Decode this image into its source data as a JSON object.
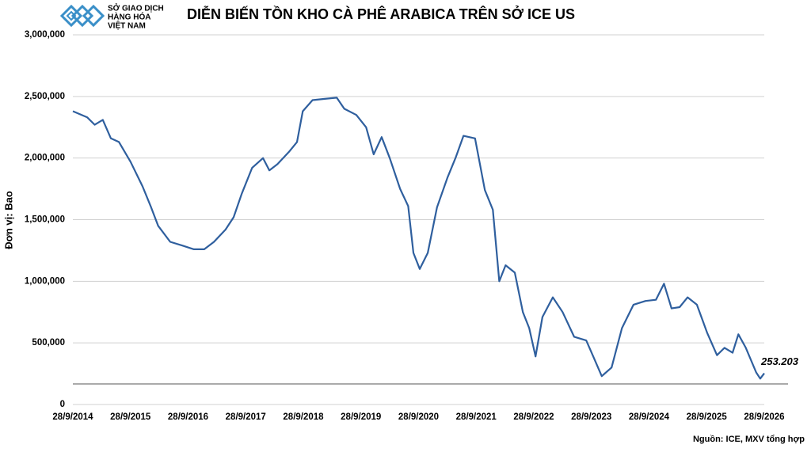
{
  "logo": [
    "SỞ GIAO DỊCH",
    "HÀNG HÓA",
    "VIỆT NAM"
  ],
  "chart_data": {
    "type": "line",
    "title": "DIỄN BIẾN TỒN KHO CÀ PHÊ ARABICA TRÊN SỞ ICE US",
    "y_label": "Đơn vị: Bao",
    "source": "Nguồn: ICE, MXV tổng hợp",
    "x": [
      2014.74,
      2014.99,
      2015.12,
      2015.26,
      2015.4,
      2015.54,
      2015.74,
      2015.95,
      2016.09,
      2016.22,
      2016.43,
      2016.64,
      2016.84,
      2017.02,
      2017.19,
      2017.39,
      2017.53,
      2017.67,
      2017.85,
      2018.04,
      2018.15,
      2018.29,
      2018.49,
      2018.63,
      2018.73,
      2018.9,
      2019.11,
      2019.32,
      2019.45,
      2019.66,
      2019.83,
      2019.96,
      2020.1,
      2020.24,
      2020.42,
      2020.56,
      2020.65,
      2020.76,
      2020.9,
      2021.06,
      2021.24,
      2021.38,
      2021.52,
      2021.72,
      2021.89,
      2022.03,
      2022.14,
      2022.25,
      2022.41,
      2022.55,
      2022.66,
      2022.77,
      2022.89,
      2023.07,
      2023.24,
      2023.44,
      2023.65,
      2023.78,
      2023.92,
      2024.09,
      2024.27,
      2024.47,
      2024.68,
      2024.86,
      2025.0,
      2025.13,
      2025.27,
      2025.41,
      2025.57,
      2025.75,
      2025.92,
      2026.05,
      2026.19,
      2026.29,
      2026.42,
      2026.6,
      2026.67,
      2026.74
    ],
    "series": [
      {
        "name": "Tồn kho",
        "color": "#2f5f9e",
        "values": [
          2380000,
          2330000,
          2270000,
          2310000,
          2160000,
          2130000,
          1970000,
          1770000,
          1610000,
          1450000,
          1320000,
          1290000,
          1260000,
          1260000,
          1320000,
          1420000,
          1520000,
          1710000,
          1920000,
          2000000,
          1900000,
          1950000,
          2050000,
          2130000,
          2380000,
          2470000,
          2480000,
          2490000,
          2400000,
          2350000,
          2250000,
          2030000,
          2170000,
          2000000,
          1750000,
          1610000,
          1230000,
          1100000,
          1230000,
          1600000,
          1840000,
          2000000,
          2180000,
          2160000,
          1740000,
          1580000,
          1000000,
          1130000,
          1070000,
          750000,
          620000,
          390000,
          710000,
          870000,
          750000,
          550000,
          520000,
          380000,
          230000,
          300000,
          620000,
          810000,
          840000,
          850000,
          980000,
          780000,
          790000,
          870000,
          810000,
          580000,
          400000,
          460000,
          420000,
          570000,
          460000,
          260000,
          210000,
          253203
        ],
        "value_labels": [
          null,
          null,
          null,
          null,
          null,
          null,
          null,
          null,
          null,
          null,
          null,
          null,
          null,
          null,
          null,
          null,
          null,
          null,
          null,
          null,
          null,
          null,
          null,
          null,
          null,
          null,
          null,
          null,
          null,
          null,
          null,
          null,
          null,
          null,
          null,
          null,
          null,
          null,
          null,
          null,
          null,
          null,
          null,
          null,
          null,
          null,
          null,
          null,
          null,
          null,
          null,
          null,
          null,
          null,
          null,
          null,
          null,
          null,
          null,
          null,
          null,
          null,
          null,
          null,
          null,
          null,
          null,
          null,
          null,
          null,
          null,
          null,
          null,
          null,
          null,
          null,
          null,
          "253.203"
        ]
      }
    ],
    "xlim": [
      2014.74,
      2026.74
    ],
    "xticks": [
      {
        "value": 2014.74,
        "label": "28/9/2014"
      },
      {
        "value": 2015.74,
        "label": "28/9/2015"
      },
      {
        "value": 2016.74,
        "label": "28/9/2016"
      },
      {
        "value": 2017.74,
        "label": "28/9/2017"
      },
      {
        "value": 2018.74,
        "label": "28/9/2018"
      },
      {
        "value": 2019.74,
        "label": "28/9/2019"
      },
      {
        "value": 2020.74,
        "label": "28/9/2020"
      },
      {
        "value": 2021.74,
        "label": "28/9/2021"
      },
      {
        "value": 2022.74,
        "label": "28/9/2022"
      },
      {
        "value": 2023.74,
        "label": "28/9/2023"
      },
      {
        "value": 2024.74,
        "label": "28/9/2024"
      },
      {
        "value": 2025.74,
        "label": "28/9/2025"
      },
      {
        "value": 2026.74,
        "label": "28/9/2026"
      }
    ],
    "ylim": [
      0,
      3000000
    ],
    "yticks": [
      0,
      {
        "value": 500000,
        "label": "500,000"
      },
      {
        "value": 1000000,
        "label": "1,000,000"
      },
      {
        "value": 1500000,
        "label": "1,500,000"
      },
      {
        "value": 2000000,
        "label": "2,000,000"
      },
      {
        "value": 2500000,
        "label": "2,500,000"
      },
      {
        "value": 3000000,
        "label": "3,000,000"
      }
    ],
    "grid": true
  }
}
